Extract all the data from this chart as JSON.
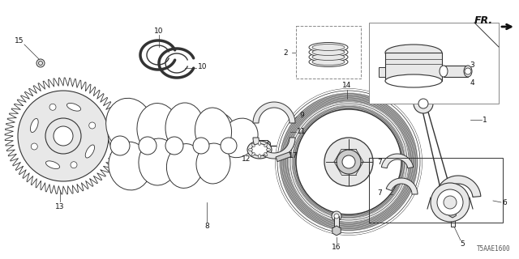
{
  "background_color": "#ffffff",
  "diagram_id": "T5AAE1600",
  "line_color": "#333333",
  "light_fill": "#e8e8e8",
  "mid_fill": "#cccccc",
  "dark_fill": "#999999",
  "label_color": "#111111",
  "label_fontsize": 6.5,
  "figsize": [
    6.4,
    3.2
  ],
  "dpi": 100
}
